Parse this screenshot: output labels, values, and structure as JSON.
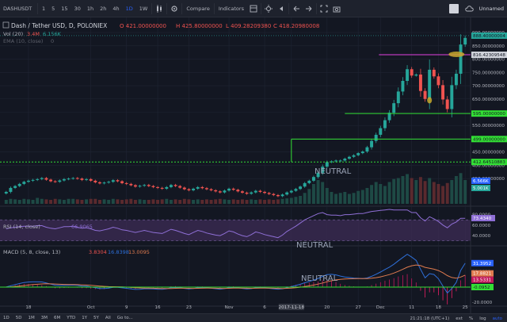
{
  "toolbar": {
    "symbol": "DASHUSDT",
    "intervals": [
      "1",
      "5",
      "15",
      "30",
      "1h",
      "2h",
      "4h",
      "1D",
      "1W"
    ],
    "active_interval": "1D",
    "compare_label": "Compare",
    "indicators_label": "Indicators",
    "layout_name": "Unnamed"
  },
  "bottombar": {
    "ranges": [
      "1D",
      "5D",
      "1M",
      "3M",
      "6M",
      "YTD",
      "1Y",
      "5Y",
      "All"
    ],
    "goto_label": "Go to...",
    "clock": "21:21:18 (UTC+1)",
    "ext_label": "ext",
    "pct_label": "%",
    "log_label": "log",
    "auto_label": "auto"
  },
  "colors": {
    "background": "#131722",
    "grid": "#1f2433",
    "up": "#26a69a",
    "down": "#ef5350",
    "ema": "#7f8cbf",
    "rsi": "#8f6fd6",
    "rsi_fill": "#3b2a52",
    "macd_line": "#2e6fd8",
    "signal_line": "#e07b4f",
    "green_level": "#33e035",
    "magenta_level": "#e040e0",
    "highlight_ellipse": "#c8a82c"
  },
  "chart_data": [
    {
      "type": "candlestick",
      "title": "Dash / Tether USD, D, POLONIEX",
      "ohlc_legend": {
        "o": "O 421.00000000",
        "h": "H 425.80000000",
        "l": "L 409.28209380",
        "c": "C 418.20980008"
      },
      "volume_legend": {
        "label": "Vol (20)",
        "a": "3.4M",
        "b": "6.156K"
      },
      "ema_legend": {
        "label": "EMA (10, close)",
        "value": "0"
      },
      "y_ticks": [
        350,
        400,
        450,
        500,
        550,
        600,
        650,
        700,
        750,
        800,
        850,
        900
      ],
      "y_tick_labels": [
        "350.00000000",
        "400.00000000",
        "450.00000000",
        "500.00000000",
        "550.00000000",
        "600.00000000",
        "650.00000000",
        "700.00000000",
        "750.00000000",
        "800.00000000",
        "850.00000000",
        "900.00000000"
      ],
      "ylim": [
        255,
        945
      ],
      "closes": [
        300,
        315,
        322,
        330,
        338,
        342,
        345,
        348,
        352,
        346,
        340,
        338,
        343,
        348,
        350,
        352,
        350,
        345,
        348,
        342,
        336,
        332,
        335,
        338,
        344,
        340,
        333,
        330,
        325,
        320,
        323,
        326,
        322,
        318,
        315,
        312,
        318,
        326,
        322,
        316,
        310,
        306,
        312,
        318,
        314,
        310,
        306,
        302,
        298,
        305,
        312,
        308,
        302,
        297,
        293,
        298,
        304,
        300,
        296,
        292,
        288,
        284,
        290,
        298,
        304,
        311,
        320,
        333,
        342,
        356,
        372,
        395,
        412,
        415,
        418,
        418,
        425,
        432,
        438,
        446,
        452,
        468,
        492,
        515,
        540,
        570,
        598,
        634,
        678,
        718,
        762,
        738,
        742,
        680,
        650,
        760,
        735,
        702,
        648,
        612,
        702,
        745,
        855,
        880
      ],
      "volumes": [
        0.4,
        0.5,
        0.45,
        0.4,
        0.5,
        0.45,
        0.4,
        0.6,
        0.5,
        0.45,
        0.4,
        0.5,
        0.45,
        0.4,
        0.5,
        0.5,
        0.45,
        0.4,
        0.45,
        0.5,
        0.5,
        0.4,
        0.45,
        0.4,
        0.5,
        0.45,
        0.4,
        0.45,
        0.5,
        0.4,
        0.45,
        0.4,
        0.4,
        0.45,
        0.4,
        0.45,
        0.5,
        0.4,
        0.45,
        0.4,
        0.5,
        0.45,
        0.4,
        0.45,
        0.4,
        0.45,
        0.4,
        0.45,
        0.5,
        0.45,
        0.4,
        0.45,
        0.4,
        0.45,
        0.4,
        0.45,
        0.4,
        0.45,
        0.4,
        0.45,
        0.4,
        0.45,
        0.5,
        0.55,
        0.6,
        0.7,
        0.8,
        1.1,
        1.5,
        2.0,
        2.4,
        2.2,
        1.6,
        1.2,
        1.0,
        1.1,
        1.2,
        1.0,
        1.1,
        1.3,
        1.4,
        1.6,
        1.9,
        2.2,
        2.0,
        1.8,
        2.2,
        2.5,
        2.6,
        2.8,
        3.0,
        2.6,
        2.4,
        2.7,
        2.3,
        2.6,
        2.2,
        2.0,
        1.8,
        2.1,
        2.4,
        2.8,
        3.1,
        2.4
      ],
      "levels": [
        {
          "value": 888.4,
          "label": "888.40000004",
          "style": "last-price"
        },
        {
          "value": 816.4,
          "label": "816.42309548",
          "style": "magenta"
        },
        {
          "value": 595.0,
          "label": "595.00000000",
          "style": "green"
        },
        {
          "value": 499.0,
          "label": "499.00000000",
          "style": "green"
        },
        {
          "value": 412.6,
          "label": "412.64510883",
          "style": "green-dashed"
        }
      ],
      "volume_tags": [
        "6.566K",
        "5.001K"
      ],
      "annotation": "NEUTRAL"
    },
    {
      "type": "line",
      "title": "RSI (14, close)",
      "value_label": "66.9065",
      "y_ticks": [
        40,
        60,
        80
      ],
      "y_tick_labels": [
        "40.0000",
        "60.0000",
        "80.0000"
      ],
      "tag": "73.4340",
      "ylim": [
        25,
        90
      ],
      "band": [
        30,
        70
      ],
      "values": [
        53,
        55,
        56,
        57,
        58,
        58,
        58,
        59,
        59,
        56,
        54,
        53,
        55,
        57,
        57,
        58,
        56,
        54,
        55,
        53,
        50,
        49,
        51,
        53,
        56,
        54,
        51,
        50,
        48,
        46,
        48,
        50,
        48,
        46,
        45,
        44,
        48,
        52,
        50,
        47,
        44,
        42,
        46,
        50,
        48,
        45,
        43,
        41,
        40,
        44,
        49,
        47,
        43,
        40,
        38,
        42,
        47,
        45,
        42,
        40,
        38,
        36,
        41,
        48,
        53,
        58,
        64,
        70,
        74,
        78,
        82,
        84,
        80,
        79,
        79,
        78,
        80,
        80,
        81,
        82,
        82,
        84,
        86,
        87,
        88,
        89,
        90,
        89,
        89,
        89,
        89,
        84,
        84,
        74,
        68,
        76,
        72,
        67,
        60,
        55,
        62,
        66,
        73,
        73
      ],
      "annotation": "NEUTRAL"
    },
    {
      "type": "line",
      "title": "MACD (5, 8, close, 13)",
      "values_label": {
        "a": "3.8304",
        "b": "16.8398",
        "c": "13.0095"
      },
      "y_ticks": [
        20,
        0,
        -20
      ],
      "y_tick_labels": [
        "20.0000",
        "0.0000",
        "-20.0000"
      ],
      "tags": [
        "31.3952",
        "17.8821",
        "13.5331",
        "-0.0952"
      ],
      "green_level": -0.0952,
      "ylim": [
        -22,
        52
      ],
      "annotation": "NEUTRAL"
    }
  ],
  "x_axis": {
    "labels": [
      {
        "i": 5,
        "text": "18"
      },
      {
        "i": 19,
        "text": "Oct"
      },
      {
        "i": 27,
        "text": "9"
      },
      {
        "i": 34,
        "text": "16"
      },
      {
        "i": 41,
        "text": "23"
      },
      {
        "i": 50,
        "text": "Nov"
      },
      {
        "i": 58,
        "text": "6"
      },
      {
        "i": 64,
        "text": "13"
      },
      {
        "i": 72,
        "text": "20"
      },
      {
        "i": 79,
        "text": "27"
      },
      {
        "i": 84,
        "text": "Dec"
      },
      {
        "i": 91,
        "text": "11"
      },
      {
        "i": 97,
        "text": "18"
      },
      {
        "i": 103,
        "text": "25"
      }
    ],
    "cursor_label": "2017-11-18"
  }
}
